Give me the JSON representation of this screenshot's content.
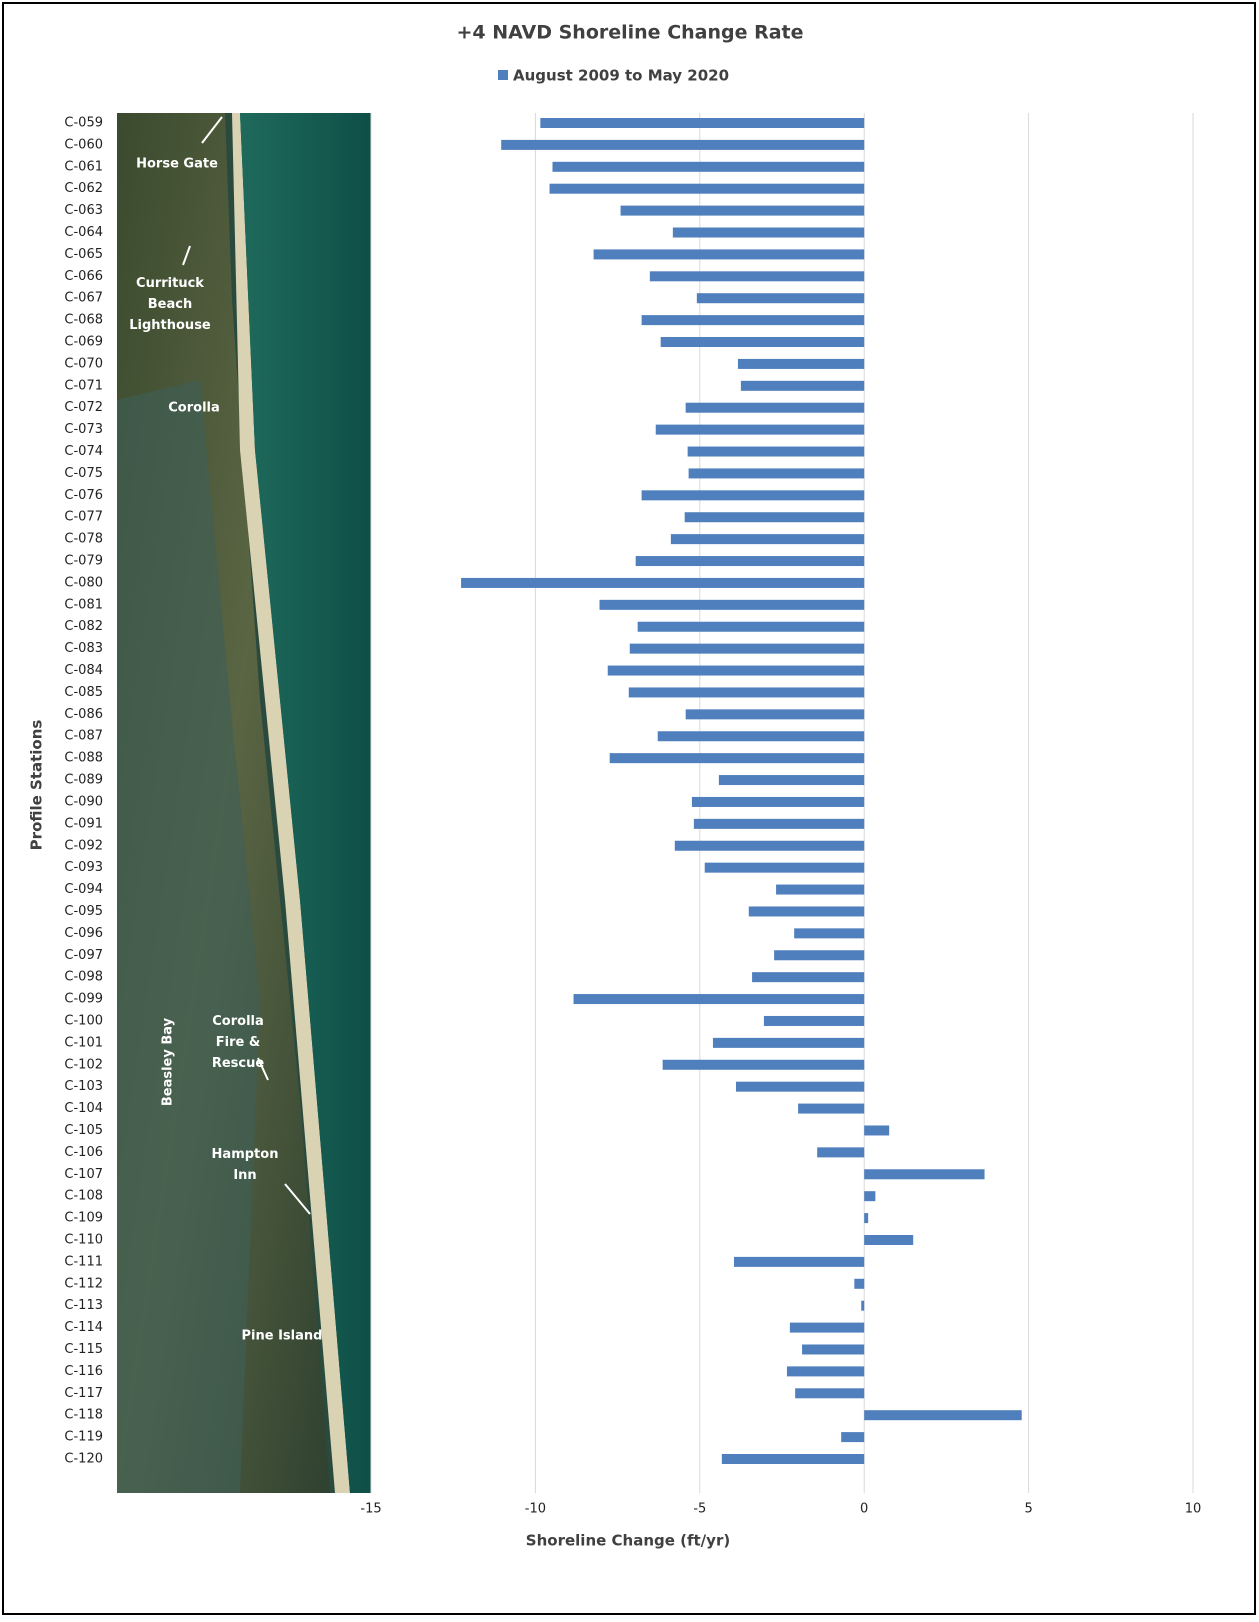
{
  "chart_data": {
    "type": "hbar",
    "title": "+4 NAVD Shoreline Change Rate",
    "x_label": "Shoreline Change (ft/yr)",
    "y_label": "Profile Stations",
    "categories": [
      "C-059",
      "C-060",
      "C-061",
      "C-062",
      "C-063",
      "C-064",
      "C-065",
      "C-066",
      "C-067",
      "C-068",
      "C-069",
      "C-070",
      "C-071",
      "C-072",
      "C-073",
      "C-074",
      "C-075",
      "C-076",
      "C-077",
      "C-078",
      "C-079",
      "C-080",
      "C-081",
      "C-082",
      "C-083",
      "C-084",
      "C-085",
      "C-086",
      "C-087",
      "C-088",
      "C-089",
      "C-090",
      "C-091",
      "C-092",
      "C-093",
      "C-094",
      "C-095",
      "C-096",
      "C-097",
      "C-098",
      "C-099",
      "C-100",
      "C-101",
      "C-102",
      "C-103",
      "C-104",
      "C-105",
      "C-106",
      "C-107",
      "C-108",
      "C-109",
      "C-110",
      "C-111",
      "C-112",
      "C-113",
      "C-114",
      "C-115",
      "C-116",
      "C-117",
      "C-118",
      "C-119",
      "C-120"
    ],
    "series": [
      {
        "name": "August 2009 to May 2020",
        "color": "#4f7fbd",
        "values": [
          -9.85,
          -11.04,
          -9.48,
          -9.57,
          -7.41,
          -5.82,
          -8.23,
          -6.52,
          -5.09,
          -6.77,
          -6.19,
          -3.84,
          -3.75,
          -5.43,
          -6.34,
          -5.37,
          -5.34,
          -6.77,
          -5.46,
          -5.88,
          -6.95,
          -12.26,
          -8.05,
          -6.89,
          -7.13,
          -7.8,
          -7.16,
          -5.43,
          -6.28,
          -7.74,
          -4.42,
          -5.24,
          -5.18,
          -5.76,
          -4.85,
          -2.68,
          -3.51,
          -2.13,
          -2.74,
          -3.41,
          -8.84,
          -3.05,
          -4.6,
          -6.13,
          -3.9,
          -2.01,
          0.76,
          -1.43,
          3.66,
          0.34,
          0.12,
          1.49,
          -3.96,
          -0.3,
          -0.09,
          -2.26,
          -1.89,
          -2.35,
          -2.1,
          4.79,
          -0.7,
          -4.33
        ]
      }
    ],
    "xlim": [
      -15,
      10
    ],
    "xticks": [
      -15,
      -10,
      -5,
      0,
      5,
      10
    ],
    "grid": true,
    "legend": "top",
    "annotations": [
      "Horse Gate",
      "Currituck Beach Lighthouse",
      "Corolla",
      "Corolla Fire & Rescue",
      "Beasley Bay",
      "Hampton Inn",
      "Pine Island"
    ]
  }
}
